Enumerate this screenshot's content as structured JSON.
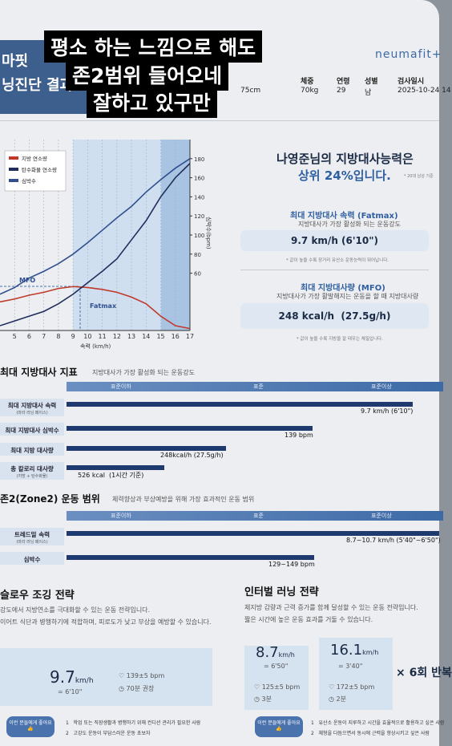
{
  "overlay": {
    "lines": [
      "평소 하는 느낌으로 해도",
      "존2범위 들어오네",
      "잘하고 있구만"
    ]
  },
  "header": {
    "brand": "마핏",
    "title": "닝진단 결과",
    "logo": "neumafit+",
    "fields": [
      {
        "label": "",
        "value": "75cm"
      },
      {
        "label": "체중",
        "value": "70kg"
      },
      {
        "label": "연령",
        "value": "29"
      },
      {
        "label": "성별",
        "value": "남"
      },
      {
        "label": "검사일시",
        "value": "2025-10-24 14"
      }
    ]
  },
  "chart_data": {
    "type": "line",
    "x_label": "속력 (km/h)",
    "y2_label": "심박수(bpm)",
    "annotations": [
      "MFO",
      "Fatmax"
    ],
    "x": [
      4,
      5,
      6,
      7,
      8,
      9,
      10,
      11,
      12,
      13,
      14,
      15,
      16,
      17
    ],
    "xlim": [
      4,
      17
    ],
    "xticks": [
      5,
      6,
      7,
      8,
      9,
      10,
      11,
      12,
      13,
      14,
      15,
      16,
      17
    ],
    "ylim": [
      0,
      200
    ],
    "yticks": [
      60,
      80,
      100,
      120,
      140,
      160,
      180
    ],
    "series": [
      {
        "name": "지방 연소량",
        "color": "#c0392b",
        "values": [
          30,
          33,
          37,
          40,
          44,
          46,
          45,
          43,
          40,
          35,
          28,
          15,
          5,
          2
        ]
      },
      {
        "name": "탄수화물 연소량",
        "color": "#1f2d5a",
        "values": [
          5,
          10,
          15,
          20,
          28,
          38,
          50,
          62,
          75,
          95,
          115,
          140,
          160,
          175
        ]
      },
      {
        "name": "심박수",
        "color": "#2f4f8f",
        "values": [
          38,
          45,
          55,
          62,
          70,
          80,
          92,
          105,
          118,
          130,
          145,
          158,
          170,
          180
        ]
      }
    ]
  },
  "summary": {
    "line1": "나영준님의 지방대사능력은",
    "line2": "상위 24%입니다.",
    "note": "* 20대 남성 기준",
    "fatmax": {
      "title": "최대 지방대사 속력 (Fatmax)",
      "desc": "지방대사가 가장 활성화 되는 운동강도",
      "value": "9.7 km/h (6'10\")",
      "note": "* 값이 높을 수록 장거리 유산소 운동능력이 뛰어납니다."
    },
    "mfo": {
      "title": "최대 지방대사량 (MFO)",
      "desc": "지방대사가 가장 활발해지는 운동을 할 때 지방대사량",
      "value": "248 kcal/h  (27.5g/h)",
      "note": "* 값이 높을 수록 지방을 잘 태우는 체질입니다."
    }
  },
  "levels": [
    "표준이하",
    "표준",
    "표준이상"
  ],
  "metrics": {
    "title": "최대 지방대사 지표",
    "subtitle": "지방대사가 가장 활성화 되는 운동강도",
    "rows": [
      {
        "label": "최대 지방대사 속력",
        "sub": "(마라 러닝 페이스)",
        "value": "9.7 km/h (6'10\")"
      },
      {
        "label": "최대 지방대사 심박수",
        "sub": "",
        "value": "139 bpm"
      },
      {
        "label": "최대 지방 대사량",
        "sub": "",
        "value": "248kcal/h (27.5g/h)"
      },
      {
        "label": "총 칼로리 대사량",
        "sub": "(지방 + 탄수화물)",
        "value": "526 kcal  (1시간 기준)"
      }
    ]
  },
  "zone2": {
    "title": "존2(Zone2) 운동 범위",
    "subtitle": "체력향상과 부상예방을 위해 가장 효과적인 운동 범위",
    "rows": [
      {
        "label": "트레드밀 속력",
        "sub": "(마라 러닝 페이스)",
        "value": "8.7~10.7 km/h (5'40\"~6'50\")"
      },
      {
        "label": "심박수",
        "sub": "",
        "value": "129~149 bpm"
      }
    ]
  },
  "slow": {
    "title": "슬로우 조깅 전략",
    "lines": [
      "강도에서 지방연소를 극대화할 수 있는 운동 전략입니다.",
      "이어트 식단과 병행하기에 적합하며, 피로도가 낮고 부상을 예방할 수 있습니다."
    ],
    "speed": "9.7",
    "unit": "km/h",
    "pace": "= 6'10\"",
    "hr": "139±5 bpm",
    "time": "70분 권장",
    "badge": "이런 분들에게 좋아요👍",
    "items": [
      "1   학업 또는 직장생활과 병행하기 위해 컨디션 관리가 필요한 사람",
      "2   고강도 운동이 부담스러운 운동 초보자"
    ]
  },
  "interval": {
    "title": "인터벌 러닝 전략",
    "lines": [
      "체지방 감량과 근력 증가를 함께 달성할 수 있는 운동 전략입니다.",
      "짧은 시간에 높은 운동 효과를 거둘 수 있습니다."
    ],
    "cards": [
      {
        "speed": "8.7",
        "unit": "km/h",
        "pace": "= 6'50\"",
        "hr": "125±5 bpm",
        "time": "3분"
      },
      {
        "speed": "16.1",
        "unit": "km/h",
        "pace": "= 3'40\"",
        "hr": "172±5 bpm",
        "time": "2분"
      }
    ],
    "repeat": "× 6회 반복",
    "badge": "이런 분들에게 좋아요👍",
    "items": [
      "1   유산소 운동이 지루하고 시간을 효율적으로 활용하고 싶은 사람",
      "2   체형을 다듬으면서 동시에 근력을 향상시키고 싶은 사람"
    ]
  }
}
